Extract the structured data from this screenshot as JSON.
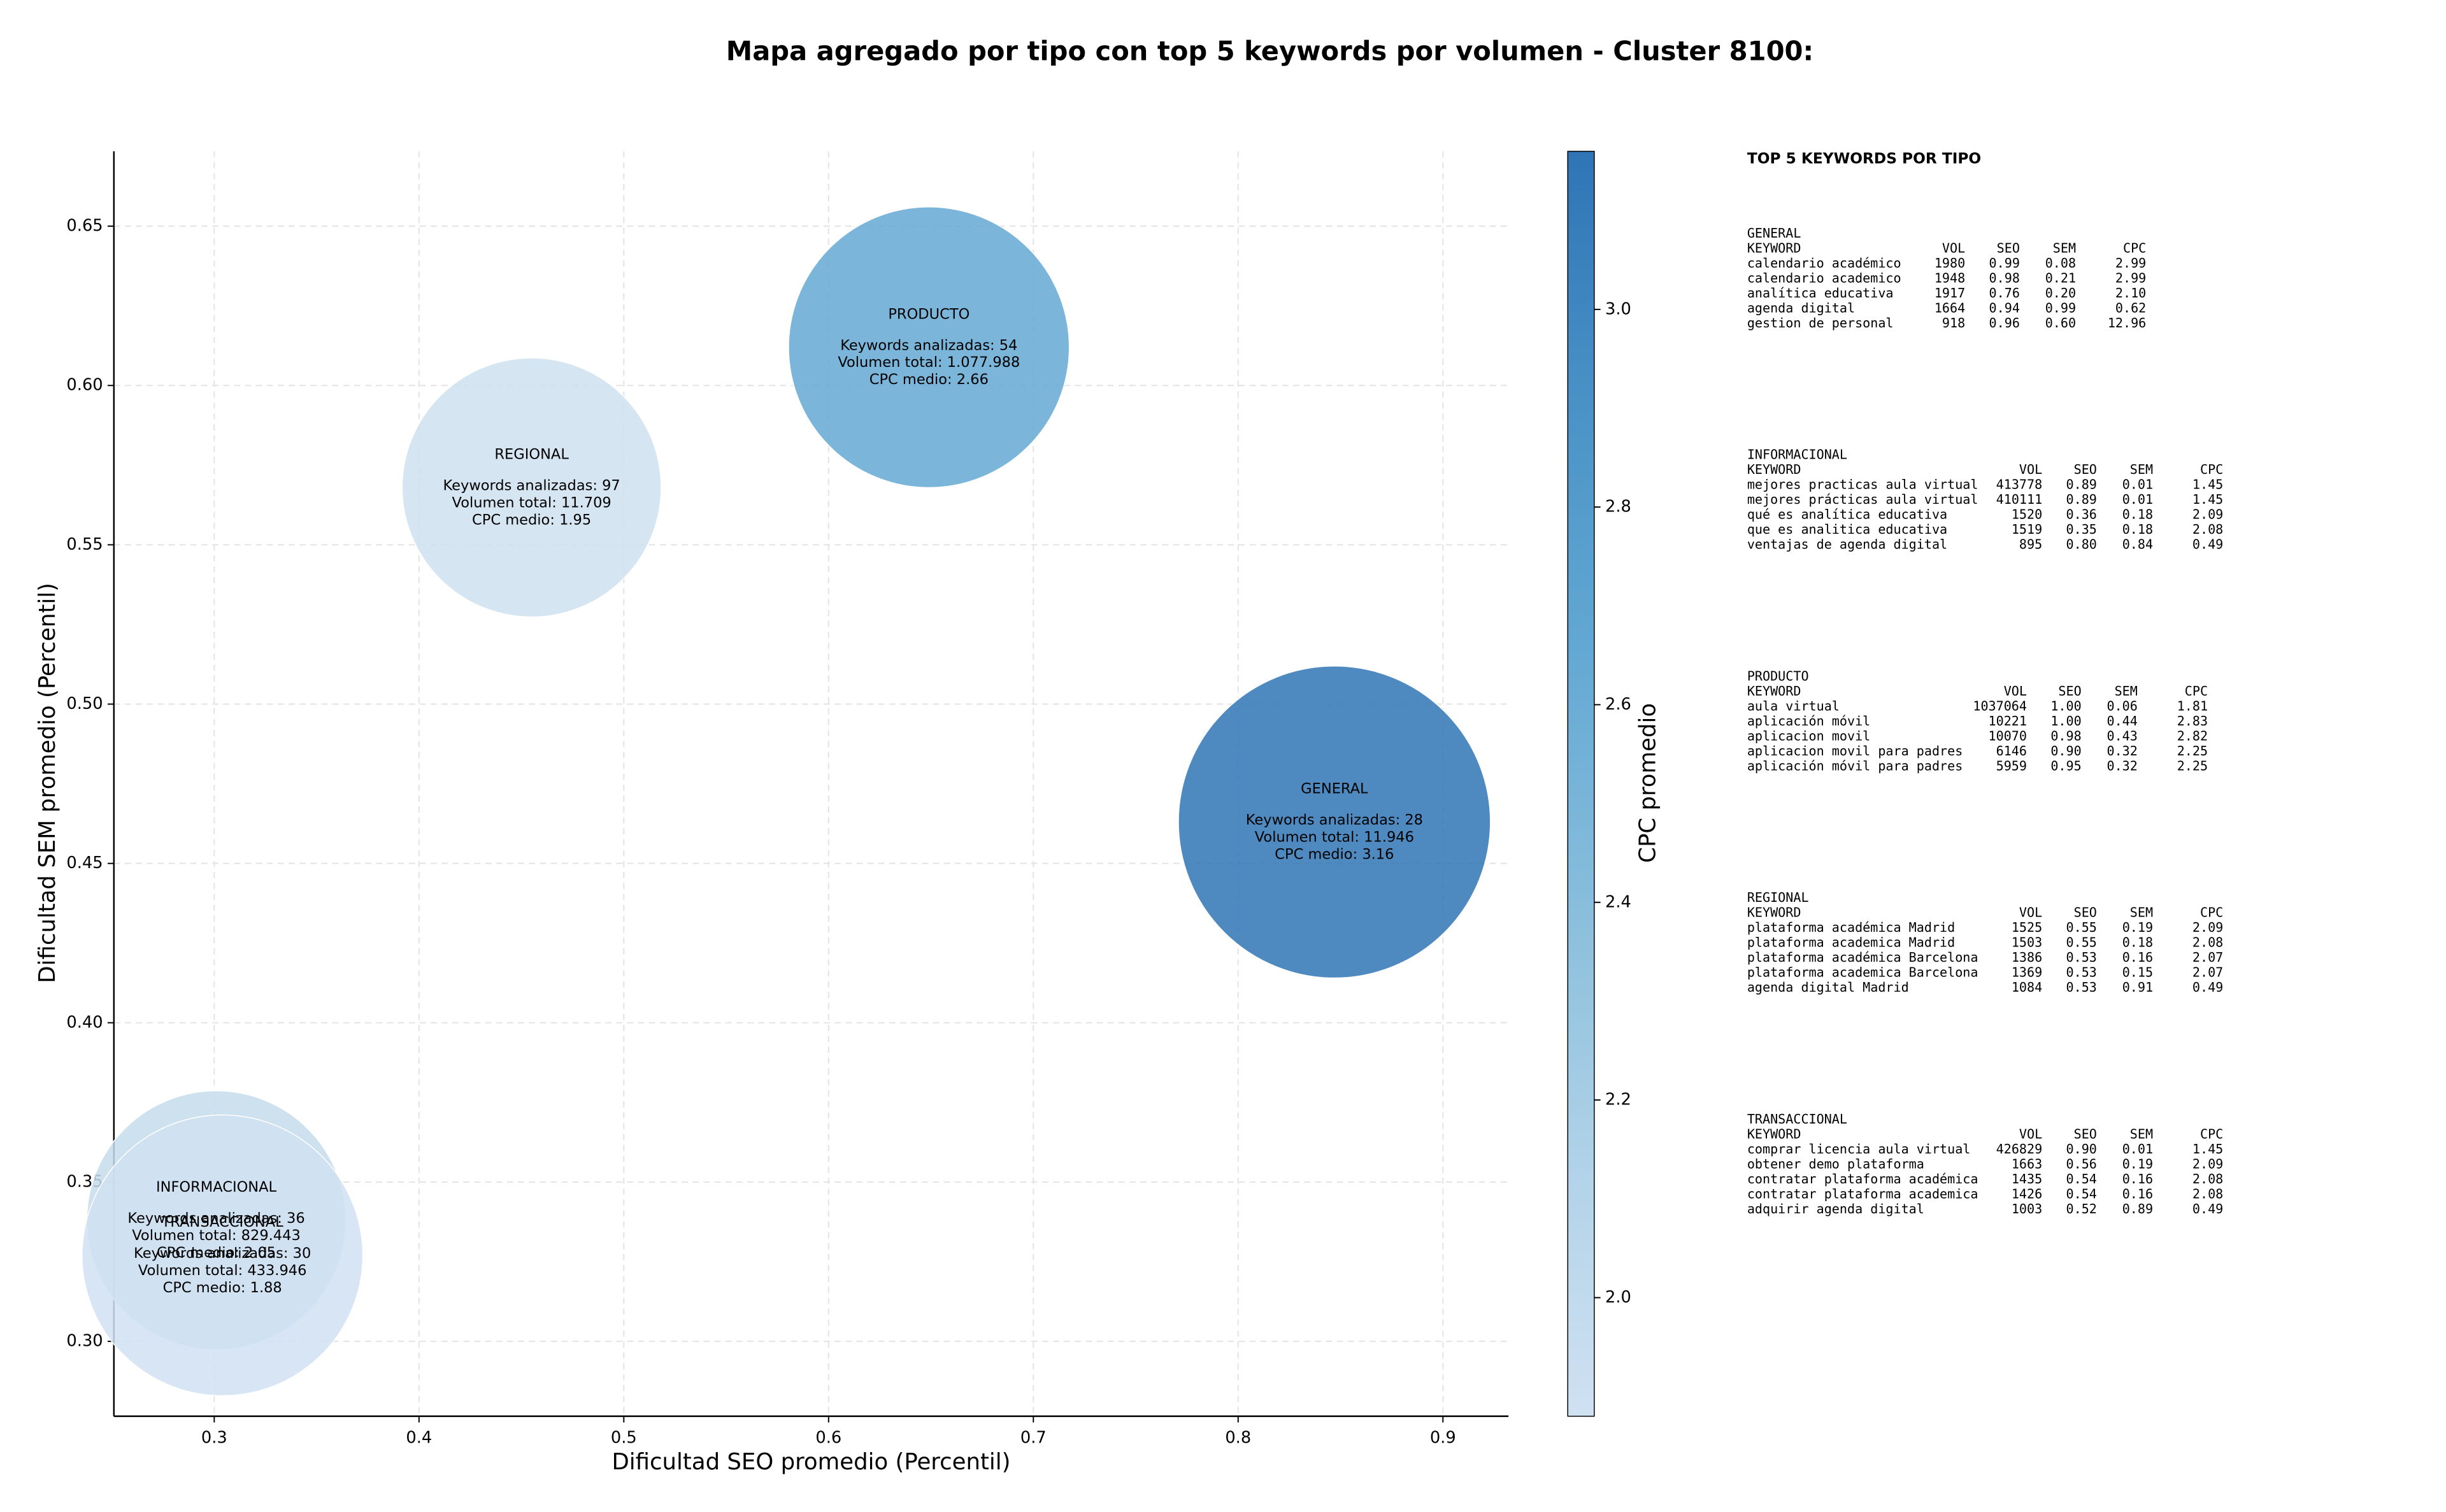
{
  "chart_data": {
    "type": "bubble",
    "title": "Mapa agregado por tipo con top 5 keywords por volumen - Cluster 8100:",
    "xlabel": "Dificultad SEO promedio (Percentil)",
    "ylabel": "Dificultad SEM promedio (Percentil)",
    "xlim": [
      0.251,
      0.932
    ],
    "ylim": [
      0.2765,
      0.6735
    ],
    "xticks": [
      0.3,
      0.4,
      0.5,
      0.6,
      0.7,
      0.8,
      0.9
    ],
    "yticks": [
      {
        "value": 0.3,
        "label": "0.30"
      },
      0.35,
      {
        "value": 0.4,
        "label": "0.40"
      },
      0.45,
      {
        "value": 0.5,
        "label": "0.50"
      },
      0.55,
      {
        "value": 0.6,
        "label": "0.60"
      },
      0.65
    ],
    "grid": true,
    "x": [
      0.847,
      0.301,
      0.649,
      0.455,
      0.304
    ],
    "y": [
      0.463,
      0.338,
      0.612,
      0.568,
      0.327
    ],
    "sizes": [
      21590,
      14880,
      17480,
      14880,
      17480
    ],
    "colors": [
      "#2f74b5",
      "#c5dcec",
      "#64a9d4",
      "#cfe0f0",
      "#d0e1f2"
    ],
    "annotations": [
      [
        "GENERAL",
        "Keywords analizadas: 28",
        "Volumen total: 11.946",
        "CPC medio: 3.16"
      ],
      [
        "INFORMACIONAL",
        "Keywords analizadas: 36",
        "Volumen total: 829.443",
        "CPC medio: 2.05"
      ],
      [
        "PRODUCTO",
        "Keywords analizadas: 54",
        "Volumen total: 1.077.988",
        "CPC medio: 2.66"
      ],
      [
        "REGIONAL",
        "Keywords analizadas: 97",
        "Volumen total: 11.709",
        "CPC medio: 1.95"
      ],
      [
        "TRANSACCIONAL",
        "Keywords analizadas: 30",
        "Volumen total: 433.946",
        "CPC medio: 1.88"
      ]
    ],
    "colorbar": {
      "label": "CPC promedio",
      "clim": [
        1.88,
        3.16
      ],
      "ticks": [
        {
          "value": 2.0,
          "label": "2.0"
        },
        2.2,
        2.4,
        2.6,
        2.8,
        {
          "value": 3.0,
          "label": "3.0"
        }
      ],
      "colors": [
        "#d0e1f2",
        "#b0d2e8",
        "#89bedc",
        "#64a9d4",
        "#4a92c6",
        "#2f74b5"
      ]
    }
  },
  "top5": {
    "title": "TOP 5 KEYWORDS POR TIPO",
    "header": [
      "KEYWORD",
      "VOL",
      "SEO",
      "SEM",
      "CPC"
    ],
    "groups": [
      {
        "name": "GENERAL",
        "rows": [
          [
            "calendario académico",
            "1980",
            "0.99",
            "0.08",
            "2.99"
          ],
          [
            "calendario academico",
            "1948",
            "0.98",
            "0.21",
            "2.99"
          ],
          [
            "analítica educativa",
            "1917",
            "0.76",
            "0.20",
            "2.10"
          ],
          [
            "agenda digital",
            "1664",
            "0.94",
            "0.99",
            "0.62"
          ],
          [
            "gestion de personal",
            "918",
            "0.96",
            "0.60",
            "12.96"
          ]
        ]
      },
      {
        "name": "INFORMACIONAL",
        "rows": [
          [
            "mejores practicas aula virtual",
            "413778",
            "0.89",
            "0.01",
            "1.45"
          ],
          [
            "mejores prácticas aula virtual",
            "410111",
            "0.89",
            "0.01",
            "1.45"
          ],
          [
            "qué es analítica educativa",
            "1520",
            "0.36",
            "0.18",
            "2.09"
          ],
          [
            "que es analitica educativa",
            "1519",
            "0.35",
            "0.18",
            "2.08"
          ],
          [
            "ventajas de agenda digital",
            "895",
            "0.80",
            "0.84",
            "0.49"
          ]
        ]
      },
      {
        "name": "PRODUCTO",
        "rows": [
          [
            "aula virtual",
            "1037064",
            "1.00",
            "0.06",
            "1.81"
          ],
          [
            "aplicación móvil",
            "10221",
            "1.00",
            "0.44",
            "2.83"
          ],
          [
            "aplicacion movil",
            "10070",
            "0.98",
            "0.43",
            "2.82"
          ],
          [
            "aplicacion movil para padres",
            "6146",
            "0.90",
            "0.32",
            "2.25"
          ],
          [
            "aplicación móvil para padres",
            "5959",
            "0.95",
            "0.32",
            "2.25"
          ]
        ]
      },
      {
        "name": "REGIONAL",
        "rows": [
          [
            "plataforma académica Madrid",
            "1525",
            "0.55",
            "0.19",
            "2.09"
          ],
          [
            "plataforma academica Madrid",
            "1503",
            "0.55",
            "0.18",
            "2.08"
          ],
          [
            "plataforma académica Barcelona",
            "1386",
            "0.53",
            "0.16",
            "2.07"
          ],
          [
            "plataforma academica Barcelona",
            "1369",
            "0.53",
            "0.15",
            "2.07"
          ],
          [
            "agenda digital Madrid",
            "1084",
            "0.53",
            "0.91",
            "0.49"
          ]
        ]
      },
      {
        "name": "TRANSACCIONAL",
        "rows": [
          [
            "comprar licencia aula virtual",
            "426829",
            "0.90",
            "0.01",
            "1.45"
          ],
          [
            "obtener demo plataforma",
            "1663",
            "0.56",
            "0.19",
            "2.09"
          ],
          [
            "contratar plataforma académica",
            "1435",
            "0.54",
            "0.16",
            "2.08"
          ],
          [
            "contratar plataforma academica",
            "1426",
            "0.54",
            "0.16",
            "2.08"
          ],
          [
            "adquirir agenda digital",
            "1003",
            "0.52",
            "0.89",
            "0.49"
          ]
        ]
      }
    ]
  }
}
